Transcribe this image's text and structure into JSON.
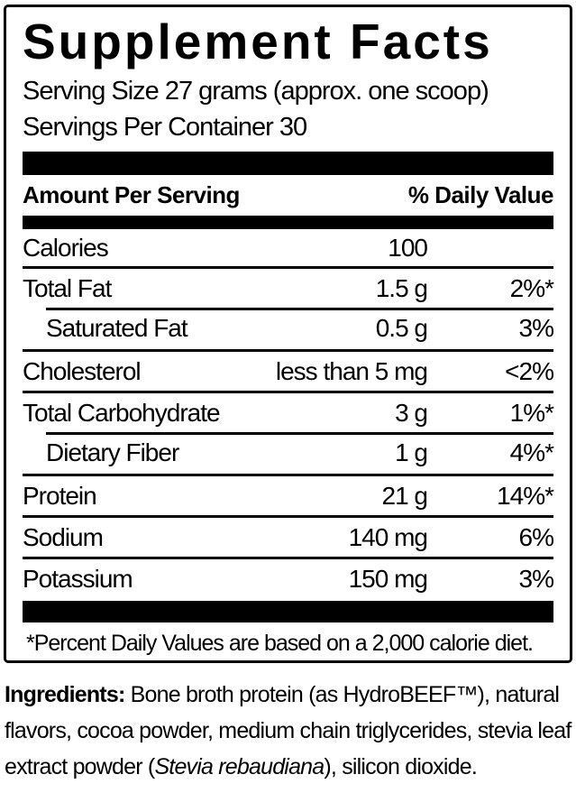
{
  "supplement_facts": {
    "title": "Supplement Facts",
    "serving_size": "Serving Size 27 grams (approx. one scoop)",
    "servings_per_container": "Servings Per Container 30",
    "header": {
      "amount_col": "Amount Per Serving",
      "dv_col": "% Daily Value"
    },
    "rows": [
      {
        "name": "Calories",
        "amount": "100",
        "dv": ""
      },
      {
        "name": "Total Fat",
        "amount": "1.5 g",
        "dv": "2%*"
      },
      {
        "name": "Saturated Fat",
        "amount": "0.5 g",
        "dv": "3%",
        "indent": true
      },
      {
        "name": "Cholesterol",
        "amount": "less than 5 mg",
        "dv": "<2%"
      },
      {
        "name": "Total Carbohydrate",
        "amount": "3 g",
        "dv": "1%*"
      },
      {
        "name": "Dietary Fiber",
        "amount": "1 g",
        "dv": "4%*",
        "indent": true
      },
      {
        "name": "Protein",
        "amount": "21 g",
        "dv": "14%*"
      },
      {
        "name": "Sodium",
        "amount": "140 mg",
        "dv": "6%"
      },
      {
        "name": "Potassium",
        "amount": "150 mg",
        "dv": "3%"
      }
    ],
    "footnote": "*Percent Daily Values are based on a 2,000 calorie diet."
  },
  "ingredients": {
    "label": "Ingredients:",
    "text_pre_italic": "Bone broth protein (as HydroBEEF™), natural flavors, cocoa powder, medium chain triglycerides, stevia leaf extract powder (",
    "italic_species": "Stevia rebaudiana",
    "text_post_italic": "), silicon dioxide."
  },
  "colors": {
    "text": "#000000",
    "background": "#ffffff",
    "rule": "#000000"
  }
}
